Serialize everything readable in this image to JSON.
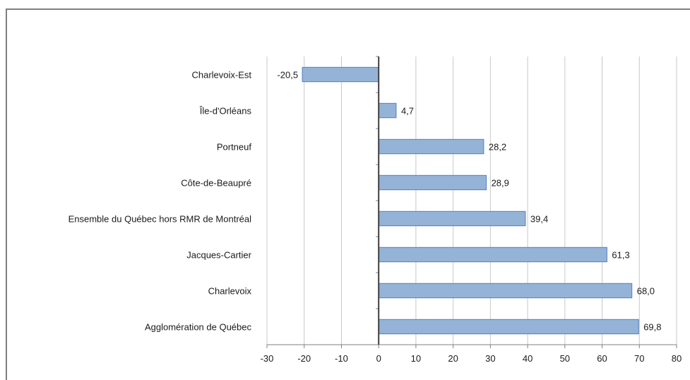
{
  "chart_data": {
    "type": "bar",
    "orientation": "horizontal",
    "categories": [
      "Charlevoix-Est",
      "Île-d'Orléans",
      "Portneuf",
      "Côte-de-Beaupré",
      "Ensemble du Québec hors RMR de Montréal",
      "Jacques-Cartier",
      "Charlevoix",
      "Agglomération de Québec"
    ],
    "values": [
      -20.5,
      4.7,
      28.2,
      28.9,
      39.4,
      61.3,
      68.0,
      69.8
    ],
    "data_labels": [
      "-20,5",
      "4,7",
      "28,2",
      "28,9",
      "39,4",
      "61,3",
      "68,0",
      "69,8"
    ],
    "x_ticks": [
      "-30",
      "-20",
      "-10",
      "0",
      "10",
      "20",
      "30",
      "40",
      "50",
      "60",
      "70",
      "80"
    ],
    "xlim": [
      -30,
      80
    ],
    "grid": "vertical",
    "bar_color": "#95b3d7",
    "bar_border_color": "#4f81bd",
    "title": "",
    "xlabel": "",
    "ylabel": ""
  }
}
